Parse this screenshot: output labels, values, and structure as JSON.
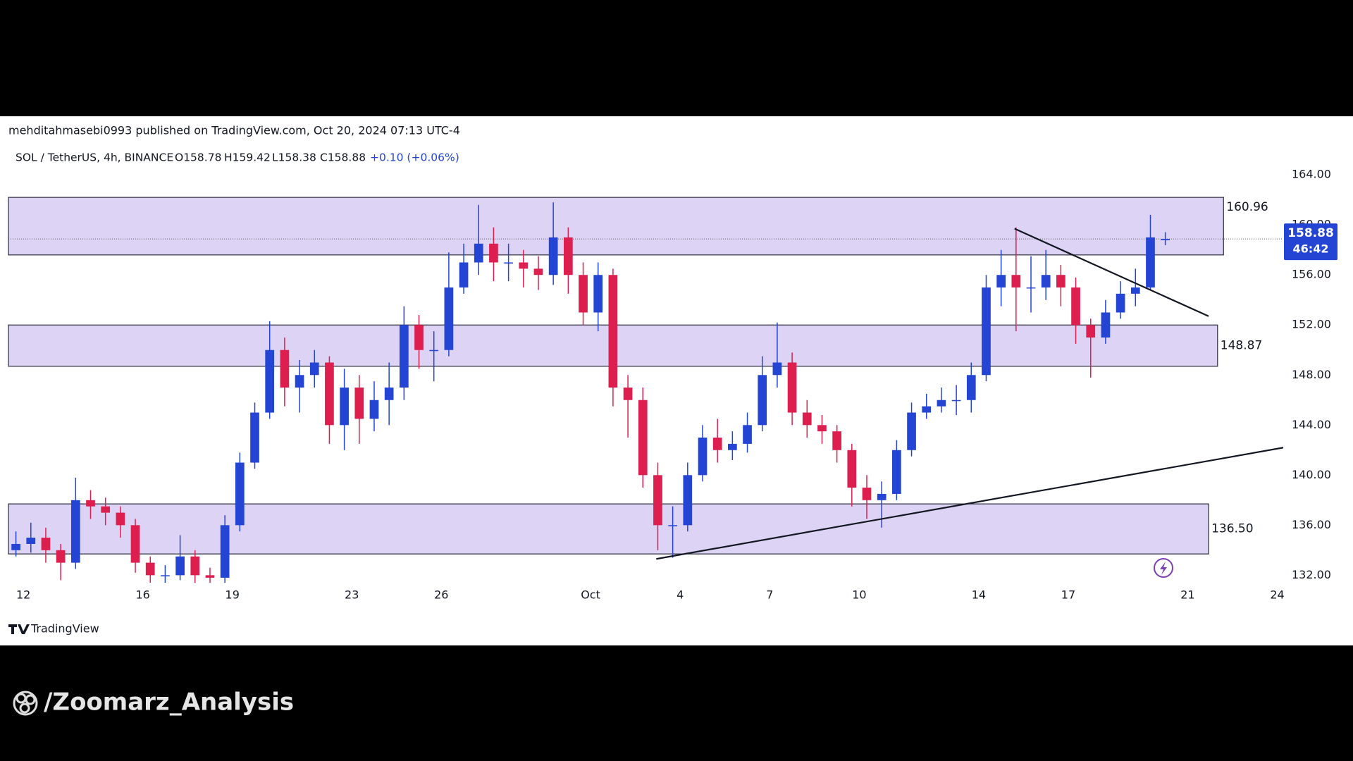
{
  "header": {
    "published": "mehditahmasebi0993 published on TradingView.com, Oct 20, 2024 07:13 UTC-4"
  },
  "legend": {
    "symbol": "SOL / TetherUS, 4h, BINANCE",
    "open": "O158.78",
    "high": "H159.42",
    "low": "L158.38",
    "close": "C158.88",
    "change": "+0.10 (+0.06%)"
  },
  "chart_data": {
    "type": "candlestick",
    "up_color": "#2444d4",
    "down_color": "#dc1f4f",
    "xlim": [
      -0.5,
      42.2
    ],
    "xticks": [
      {
        "value": 0,
        "label": "12"
      },
      {
        "value": 4,
        "label": "16"
      },
      {
        "value": 7,
        "label": "19"
      },
      {
        "value": 11,
        "label": "23"
      },
      {
        "value": 14,
        "label": "26"
      },
      {
        "value": 19,
        "label": "Oct"
      },
      {
        "value": 22,
        "label": "4"
      },
      {
        "value": 25,
        "label": "7"
      },
      {
        "value": 28,
        "label": "10"
      },
      {
        "value": 32,
        "label": "14"
      },
      {
        "value": 35,
        "label": "17"
      },
      {
        "value": 39,
        "label": "21"
      },
      {
        "value": 42,
        "label": "24"
      }
    ],
    "ylim": [
      131.4,
      166.6
    ],
    "yticks": [
      {
        "value": 132,
        "label": "132.00"
      },
      {
        "value": 136,
        "label": "136.00"
      },
      {
        "value": 140,
        "label": "140.00"
      },
      {
        "value": 144,
        "label": "144.00"
      },
      {
        "value": 148,
        "label": "148.00"
      },
      {
        "value": 152,
        "label": "152.00"
      },
      {
        "value": 156,
        "label": "156.00"
      },
      {
        "value": 160,
        "label": "160.00"
      },
      {
        "value": 164,
        "label": "164.00"
      }
    ],
    "grid": false,
    "candles": {
      "x": [
        -0.25,
        0.25,
        0.75,
        1.25,
        1.75,
        2.25,
        2.75,
        3.25,
        3.75,
        4.25,
        4.75,
        5.25,
        5.75,
        6.25,
        6.75,
        7.25,
        7.75,
        8.25,
        8.75,
        9.25,
        9.75,
        10.25,
        10.75,
        11.25,
        11.75,
        12.25,
        12.75,
        13.25,
        13.75,
        14.25,
        14.75,
        15.25,
        15.75,
        16.25,
        16.75,
        17.25,
        17.75,
        18.25,
        18.75,
        19.25,
        19.75,
        20.25,
        20.75,
        21.25,
        21.75,
        22.25,
        22.75,
        23.25,
        23.75,
        24.25,
        24.75,
        25.25,
        25.75,
        26.25,
        26.75,
        27.25,
        27.75,
        28.25,
        28.75,
        29.25,
        29.75,
        30.25,
        30.75,
        31.25,
        31.75,
        32.25,
        32.75,
        33.25,
        33.75,
        34.25,
        34.75,
        35.25,
        35.75,
        36.25,
        36.75,
        37.25,
        37.75,
        38.25
      ],
      "open": [
        134,
        134.5,
        135,
        134,
        133,
        138,
        137.5,
        137,
        136,
        133,
        132,
        132,
        133.5,
        132,
        131.8,
        136,
        141,
        145,
        150,
        147,
        148,
        149,
        144,
        147,
        144.5,
        146,
        147,
        152,
        150,
        150,
        155,
        157,
        158.5,
        157,
        157,
        156.5,
        156,
        159,
        156,
        153,
        156,
        147,
        146,
        140,
        136,
        136,
        140,
        143,
        142,
        142.5,
        144,
        148,
        149,
        145,
        144,
        143.5,
        142,
        139,
        138,
        138.5,
        142,
        145,
        145.5,
        146,
        146,
        148,
        155,
        156,
        155,
        155,
        156,
        155,
        152,
        151,
        153,
        154.5,
        155,
        158.78
      ],
      "high": [
        135.5,
        136.2,
        135.8,
        134.5,
        139.8,
        138.8,
        138.2,
        137.5,
        136.5,
        133.5,
        132.8,
        135.2,
        134,
        132.6,
        136.8,
        141.8,
        145.8,
        152.3,
        151,
        149.2,
        150,
        149.5,
        148.5,
        148,
        147.5,
        149,
        153.5,
        152.8,
        151.5,
        157.8,
        158.5,
        161.6,
        159.8,
        158.5,
        158,
        157.5,
        161.8,
        159.8,
        157,
        157,
        156.5,
        148,
        147,
        141,
        137.5,
        141,
        144,
        144.5,
        143.5,
        145,
        149.5,
        152.2,
        149.8,
        146,
        144.8,
        144,
        142.5,
        140,
        139.5,
        142.8,
        145.8,
        146.5,
        147,
        147.2,
        149,
        156,
        158,
        159.8,
        157.5,
        158,
        156.8,
        155.8,
        152.5,
        154,
        155.5,
        156.5,
        160.8,
        159.42
      ],
      "low": [
        133.5,
        133.8,
        133,
        131.6,
        132.5,
        136.5,
        136,
        135,
        132.2,
        131.4,
        131.4,
        131.6,
        131.4,
        131.4,
        131.4,
        135.5,
        140.5,
        144.5,
        145.5,
        145,
        147,
        142.5,
        142,
        142.5,
        143.5,
        144,
        146,
        148.5,
        147.5,
        149.5,
        154.5,
        156,
        155.5,
        155.5,
        155,
        154.8,
        155.2,
        154.5,
        152,
        151.5,
        145.5,
        143,
        139,
        134,
        133.4,
        135.5,
        139.5,
        141,
        141.2,
        141.8,
        143.5,
        147,
        144,
        143,
        142.5,
        141,
        137.5,
        136.5,
        135.8,
        138,
        141.5,
        144.5,
        145,
        144.8,
        145,
        147.5,
        153.5,
        151.5,
        153,
        154,
        153.5,
        150.5,
        147.8,
        150.5,
        152.5,
        153.5,
        154.8,
        158.38
      ],
      "close": [
        134.5,
        135,
        134,
        133,
        138,
        137.5,
        137,
        136,
        133,
        132,
        132,
        133.5,
        132,
        131.8,
        136,
        141,
        145,
        150,
        147,
        148,
        149,
        144,
        147,
        144.5,
        146,
        147,
        152,
        150,
        150,
        155,
        157,
        158.5,
        157,
        157,
        156.5,
        156,
        159,
        156,
        153,
        156,
        147,
        146,
        140,
        136,
        136,
        140,
        143,
        142,
        142.5,
        144,
        148,
        149,
        145,
        144,
        143.5,
        142,
        139,
        138,
        138.5,
        142,
        145,
        145.5,
        146,
        146,
        148,
        155,
        156,
        155,
        155,
        156,
        155,
        152,
        151,
        153,
        154.5,
        155,
        159,
        158.88
      ]
    },
    "zones": [
      {
        "top": 162.2,
        "bottom": 157.6,
        "end": 40.2,
        "label": "160.96"
      },
      {
        "top": 152.0,
        "bottom": 148.7,
        "end": 40.0,
        "label": "148.87"
      },
      {
        "top": 137.7,
        "bottom": 133.7,
        "end": 39.7,
        "label": "136.50"
      }
    ],
    "trendlines": [
      {
        "x": [
          21.2,
          42.2
        ],
        "y": [
          133.3,
          142.2
        ]
      },
      {
        "x": [
          33.2,
          39.7
        ],
        "y": [
          159.7,
          152.7
        ]
      }
    ],
    "last_price": {
      "value": 158.88,
      "countdown": "46:42"
    }
  },
  "footer": {
    "brand": "TradingView",
    "watermark": "/Zoomarz_Analysis"
  }
}
